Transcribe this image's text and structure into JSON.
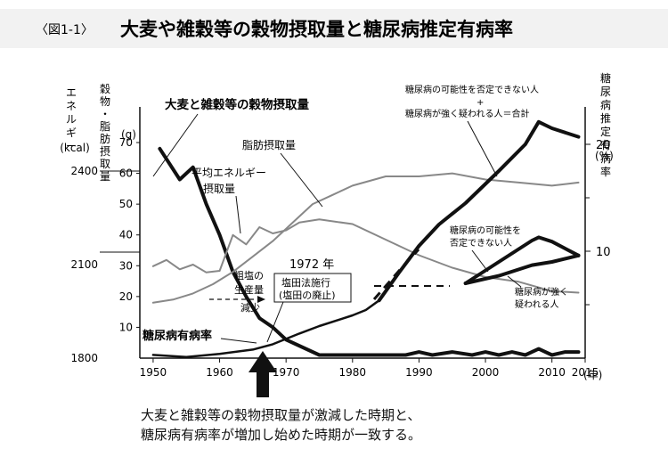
{
  "figure": {
    "label": "〈図1-1〉",
    "title": "大麦や雑穀等の穀物摂取量と糖尿病推定有病率",
    "caption_line1": "大麦と雑穀等の穀物摂取量が激減した時期と、",
    "caption_line2": "糖尿病有病率が増加し始めた時期が一致する。"
  },
  "colors": {
    "ink": "#111111",
    "gray": "#888888",
    "lightgray": "#aaaaaa",
    "bg": "#ffffff"
  },
  "chart_data": {
    "type": "line",
    "x_ticks": [
      "1950",
      "1960",
      "1970",
      "1980",
      "1990",
      "2000",
      "2010",
      "2015"
    ],
    "x_unit": "(年)",
    "xlim": [
      1948,
      2015
    ],
    "left_outer_axis": {
      "label": [
        "エ",
        "ネ",
        "ル",
        "ギ",
        "ー",
        "(kcal)"
      ],
      "ticks": [
        "2400",
        "2100",
        "1800"
      ],
      "ylim": [
        1800,
        2400
      ]
    },
    "left_inner_axis": {
      "label": [
        "穀",
        "物",
        "・",
        "脂",
        "肪",
        "摂",
        "取",
        "量"
      ],
      "unit": "(g)",
      "ticks": [
        "70",
        "60",
        "50",
        "40",
        "30",
        "20",
        "10"
      ],
      "ylim": [
        0,
        70
      ]
    },
    "right_axis": {
      "label": [
        "糖",
        "尿",
        "病",
        "推",
        "定",
        "有",
        "病",
        "率"
      ],
      "unit": "(%)",
      "ticks": [
        "20",
        "10"
      ],
      "ylim": [
        0,
        20
      ]
    },
    "series": [
      {
        "name": "大麦と雑穀等の穀物摂取量",
        "style": "thick",
        "x": [
          1951,
          1954,
          1956,
          1958,
          1960,
          1962,
          1964,
          1966,
          1968,
          1970,
          1975,
          1980,
          1985,
          1988,
          1990,
          1992,
          1995,
          1998,
          2000,
          2002,
          2004,
          2006,
          2008,
          2010,
          2012,
          2014
        ],
        "y": [
          68,
          58,
          62,
          50,
          40,
          28,
          20,
          13,
          10,
          6,
          1,
          1,
          1,
          1,
          2,
          1,
          2,
          1,
          2,
          1,
          2,
          1,
          3,
          1,
          2,
          2
        ]
      },
      {
        "name": "平均エネルギー摂取量",
        "style": "gray",
        "x": [
          1950,
          1952,
          1954,
          1956,
          1958,
          1960,
          1962,
          1964,
          1966,
          1968,
          1970,
          1972,
          1975,
          1980,
          1985,
          1990,
          1995,
          2000,
          2005,
          2010,
          2014
        ],
        "y": [
          2095,
          2115,
          2085,
          2100,
          2075,
          2080,
          2195,
          2165,
          2220,
          2200,
          2210,
          2235,
          2245,
          2230,
          2180,
          2130,
          2090,
          2060,
          2045,
          2015,
          2010
        ]
      },
      {
        "name": "脂肪摂取量",
        "style": "gray",
        "x": [
          1950,
          1953,
          1956,
          1959,
          1962,
          1965,
          1968,
          1971,
          1974,
          1977,
          1980,
          1985,
          1990,
          1995,
          2000,
          2005,
          2010,
          2014
        ],
        "y": [
          18,
          19,
          21,
          24,
          28,
          33,
          38,
          44,
          50,
          53,
          56,
          59,
          59,
          60,
          58,
          57,
          56,
          57
        ]
      },
      {
        "name": "糖尿病推定有病率",
        "style": "medium",
        "x": [
          1950,
          1955,
          1960,
          1965,
          1968,
          1970,
          1972,
          1975,
          1978,
          1980,
          1982,
          1984
        ],
        "y": [
          0.3,
          0.1,
          0.4,
          0.8,
          1.3,
          1.8,
          2.3,
          3.0,
          3.6,
          4.0,
          4.5,
          5.4
        ]
      },
      {
        "name": "糖尿病の可能性を否定できない人 ＋ 糖尿病が強く疑われる人＝合計",
        "style": "thick",
        "x": [
          1984,
          1987,
          1990,
          1993,
          1997,
          2002,
          2006,
          2008,
          2010,
          2014
        ],
        "y": [
          5.4,
          8.0,
          10.5,
          12.5,
          14.5,
          17.5,
          20.0,
          22.1,
          21.5,
          20.7
        ]
      },
      {
        "name": "糖尿病の可能性を否定できない人",
        "style": "thick",
        "x": [
          1997,
          2002,
          2007,
          2008,
          2010,
          2014
        ],
        "y": [
          7.0,
          9.0,
          11.0,
          11.3,
          10.9,
          9.6
        ]
      },
      {
        "name": "糖尿病が強く疑われる人",
        "style": "thick",
        "x": [
          1997,
          2002,
          2007,
          2010,
          2014
        ],
        "y": [
          7.0,
          7.7,
          8.7,
          9.0,
          9.6
        ]
      }
    ],
    "annotations": {
      "label_grain": "大麦と雑穀等の穀物摂取量",
      "label_energy": [
        "平均エネルギー",
        "摂取量"
      ],
      "label_fat": "脂肪摂取量",
      "label_prevalence": "糖尿病有病率",
      "label_total": [
        "糖尿病の可能性を否定できない人",
        "+",
        "糖尿病が強く疑われる人＝合計"
      ],
      "label_possible": [
        "糖尿病の可能性を",
        "否定できない人"
      ],
      "label_strong": [
        "糖尿病が強く",
        "疑われる人"
      ],
      "label_salt": [
        "粗塩の",
        "生産量",
        "減少"
      ],
      "year_1972": "1972 年",
      "label_law": [
        "塩田法施行",
        "(塩田の廃止)"
      ]
    }
  }
}
